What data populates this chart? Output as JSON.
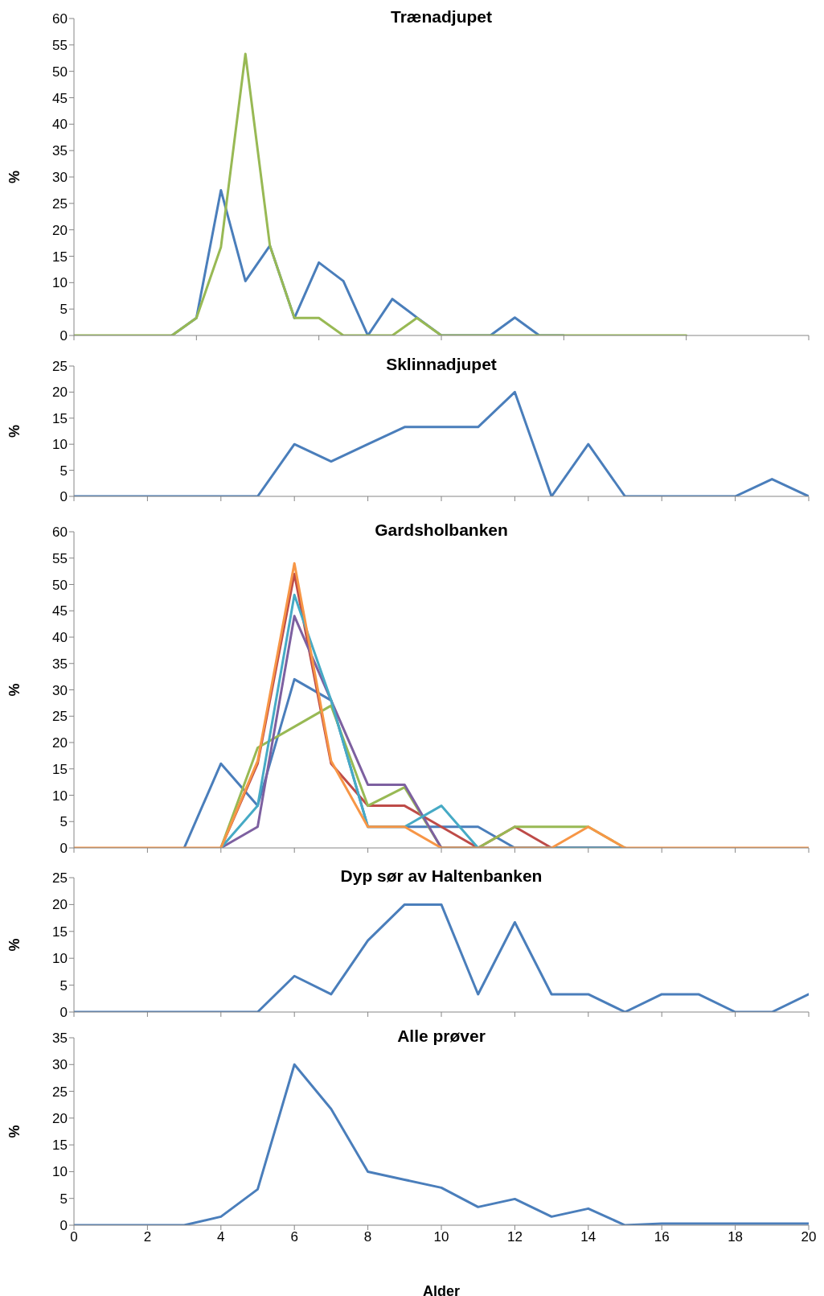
{
  "chart_data": [
    {
      "type": "line",
      "title": "Trænadjupet",
      "ylabel": "%",
      "categories": [
        null,
        null,
        null,
        null,
        null,
        null,
        null,
        null,
        null,
        null,
        null,
        null,
        null,
        null,
        null,
        null,
        null,
        null,
        null,
        null,
        null,
        null,
        null,
        null,
        null,
        null,
        null,
        null,
        null,
        null,
        null
      ],
      "ylim": [
        0,
        60
      ],
      "yticks": [
        0,
        5,
        10,
        15,
        20,
        25,
        30,
        35,
        40,
        45,
        50,
        55,
        60
      ],
      "tick_labels": "y",
      "series": [
        {
          "color": "#4a7ebb",
          "values": [
            null,
            null,
            null,
            null,
            0,
            3.3,
            27.5,
            10.3,
            17,
            3.3,
            13.8,
            10.3,
            0,
            6.9,
            3.4,
            0,
            0,
            0,
            3.4,
            0,
            0,
            null,
            null,
            null,
            null,
            null,
            null,
            null,
            null,
            null,
            null
          ]
        },
        {
          "color": "#98b954",
          "values": [
            0,
            0,
            0,
            0,
            0,
            3.3,
            16.7,
            53.3,
            17,
            3.3,
            3.3,
            0,
            0,
            0,
            3.3,
            0,
            0,
            0,
            0,
            0,
            0,
            0,
            0,
            0,
            0,
            0,
            null,
            null,
            null,
            null,
            null
          ]
        }
      ]
    },
    {
      "type": "line",
      "title": "Sklinnadjupet",
      "ylabel": "%",
      "x": [
        0,
        1,
        2,
        3,
        4,
        5,
        6,
        7,
        8,
        9,
        10,
        11,
        12,
        13,
        14,
        15,
        16,
        17,
        18,
        19,
        20
      ],
      "xlim": [
        0,
        20
      ],
      "xticks": [
        {
          "value": 0,
          "label": null
        },
        {
          "value": 2,
          "label": null
        },
        {
          "value": 4,
          "label": null
        },
        {
          "value": 6,
          "label": null
        },
        {
          "value": 8,
          "label": null
        },
        {
          "value": 10,
          "label": null
        },
        {
          "value": 12,
          "label": null
        },
        {
          "value": 14,
          "label": null
        },
        {
          "value": 16,
          "label": null
        },
        {
          "value": 18,
          "label": null
        },
        {
          "value": 20,
          "label": null
        }
      ],
      "ylim": [
        0,
        25
      ],
      "yticks": [
        0,
        5,
        10,
        15,
        20,
        25
      ],
      "tick_labels": "y",
      "series": [
        {
          "color": "#4a7ebb",
          "values": [
            0,
            0,
            0,
            0,
            0,
            0,
            10,
            6.7,
            10,
            13.3,
            13.3,
            13.3,
            20,
            0,
            10,
            0,
            0,
            0,
            0,
            3.3,
            0
          ]
        }
      ]
    },
    {
      "type": "line",
      "title": "Gardsholbanken",
      "ylabel": "%",
      "x": [
        0,
        1,
        2,
        3,
        4,
        5,
        6,
        7,
        8,
        9,
        10,
        11,
        12,
        13,
        14,
        15,
        16,
        17,
        18,
        19,
        20
      ],
      "xlim": [
        0,
        20
      ],
      "xticks": [
        {
          "value": 0,
          "label": null
        },
        {
          "value": 2,
          "label": null
        },
        {
          "value": 4,
          "label": null
        },
        {
          "value": 6,
          "label": null
        },
        {
          "value": 8,
          "label": null
        },
        {
          "value": 10,
          "label": null
        },
        {
          "value": 12,
          "label": null
        },
        {
          "value": 14,
          "label": null
        },
        {
          "value": 16,
          "label": null
        },
        {
          "value": 18,
          "label": null
        },
        {
          "value": 20,
          "label": null
        }
      ],
      "ylim": [
        0,
        60
      ],
      "yticks": [
        0,
        5,
        10,
        15,
        20,
        25,
        30,
        35,
        40,
        45,
        50,
        55,
        60
      ],
      "tick_labels": "y",
      "series": [
        {
          "color": "#4a7ebb",
          "values": [
            null,
            null,
            null,
            0,
            16,
            8,
            32,
            28,
            4,
            4,
            4,
            4,
            0,
            0,
            0,
            0,
            null,
            null,
            null,
            null,
            null
          ]
        },
        {
          "color": "#be4b48",
          "values": [
            null,
            null,
            null,
            null,
            0,
            16,
            52,
            16,
            8,
            8,
            4,
            0,
            4,
            0,
            0,
            0,
            null,
            null,
            null,
            null,
            null
          ]
        },
        {
          "color": "#98b954",
          "values": [
            null,
            null,
            null,
            null,
            0,
            19,
            23,
            27,
            8,
            11.5,
            0,
            0,
            4,
            4,
            4,
            0,
            null,
            null,
            null,
            null,
            null
          ]
        },
        {
          "color": "#7d60a0",
          "values": [
            null,
            null,
            null,
            null,
            0,
            4,
            44,
            28,
            12,
            12,
            0,
            0,
            0,
            0,
            0,
            0,
            null,
            null,
            null,
            null,
            null
          ]
        },
        {
          "color": "#46aac5",
          "values": [
            null,
            null,
            null,
            null,
            0,
            8,
            48,
            28,
            4,
            4,
            8,
            0,
            0,
            0,
            0,
            0,
            null,
            null,
            null,
            null,
            null
          ]
        },
        {
          "color": "#f79646",
          "values": [
            0,
            0,
            0,
            0,
            0,
            16.5,
            54,
            16.5,
            4,
            4,
            0,
            0,
            0,
            0,
            4,
            0,
            0,
            0,
            0,
            0,
            0
          ]
        }
      ]
    },
    {
      "type": "line",
      "title": "Dyp sør av Haltenbanken",
      "ylabel": "%",
      "x": [
        0,
        1,
        2,
        3,
        4,
        5,
        6,
        7,
        8,
        9,
        10,
        11,
        12,
        13,
        14,
        15,
        16,
        17,
        18,
        19,
        20
      ],
      "xlim": [
        0,
        20
      ],
      "xticks": [
        {
          "value": 0,
          "label": null
        },
        {
          "value": 2,
          "label": null
        },
        {
          "value": 4,
          "label": null
        },
        {
          "value": 6,
          "label": null
        },
        {
          "value": 8,
          "label": null
        },
        {
          "value": 10,
          "label": null
        },
        {
          "value": 12,
          "label": null
        },
        {
          "value": 14,
          "label": null
        },
        {
          "value": 16,
          "label": null
        },
        {
          "value": 18,
          "label": null
        },
        {
          "value": 20,
          "label": null
        }
      ],
      "ylim": [
        0,
        25
      ],
      "yticks": [
        0,
        5,
        10,
        15,
        20,
        25
      ],
      "tick_labels": "y",
      "series": [
        {
          "color": "#4a7ebb",
          "values": [
            0,
            0,
            0,
            0,
            0,
            0,
            6.7,
            3.3,
            13.3,
            20,
            20,
            3.3,
            16.7,
            3.3,
            3.3,
            0,
            3.3,
            3.3,
            0,
            0,
            3.3
          ]
        }
      ]
    },
    {
      "type": "line",
      "title": "Alle prøver",
      "ylabel": "%",
      "xlabel": "Alder",
      "x": [
        0,
        1,
        2,
        3,
        4,
        5,
        6,
        7,
        8,
        9,
        10,
        11,
        12,
        13,
        14,
        15,
        16,
        17,
        18,
        19,
        20
      ],
      "xlim": [
        0,
        20
      ],
      "xticks": [
        0,
        2,
        4,
        6,
        8,
        10,
        12,
        14,
        16,
        18,
        20
      ],
      "ylim": [
        0,
        35
      ],
      "yticks": [
        0,
        5,
        10,
        15,
        20,
        25,
        30,
        35
      ],
      "series": [
        {
          "color": "#4a7ebb",
          "values": [
            0,
            0,
            0,
            0,
            1.6,
            6.7,
            30,
            21.7,
            10,
            8.5,
            7,
            3.4,
            4.9,
            1.6,
            3.1,
            0,
            0.3,
            0.3,
            0.3,
            0.3,
            0.3
          ]
        }
      ]
    }
  ]
}
